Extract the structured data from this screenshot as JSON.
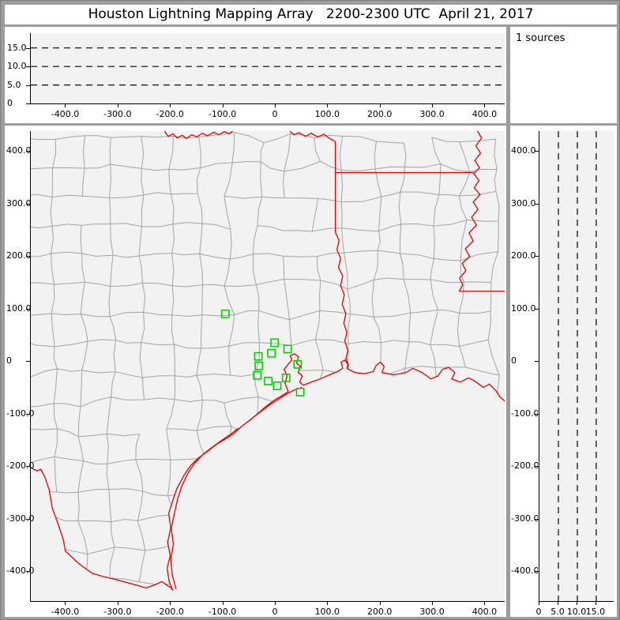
{
  "window": {
    "title": "Houston Lightning Mapping Array   2200-2300 UTC  April 21, 2017"
  },
  "sources_panel": {
    "label": "1 sources"
  },
  "colors": {
    "window_frame": "#9c9c9c",
    "panel_background": "#ffffff",
    "plot_background": "#f2f2f2",
    "axis": "#000000",
    "county_line": "#a3a3a3",
    "state_border": "#e60000",
    "station_marker": "#00d400",
    "dashed_gridline": "#000000"
  },
  "chart_data": [
    {
      "id": "altitude-vs-eastwest",
      "type": "scatter",
      "title": "",
      "xlabel": "",
      "ylabel": "",
      "xlim": [
        -467,
        437
      ],
      "ylim": [
        0,
        19
      ],
      "x_ticks": {
        "values": [
          -400,
          -300,
          -200,
          -100,
          0,
          100,
          200,
          300,
          400
        ],
        "labels": [
          "-400.0",
          "-300.0",
          "-200.0",
          "-100.0",
          "0",
          "100.0",
          "200.0",
          "300.0",
          "400.0"
        ]
      },
      "y_ticks": {
        "values": [
          0,
          5,
          10,
          15
        ],
        "labels": [
          "0",
          "5.0",
          "10.0",
          "15.0"
        ]
      },
      "dashed_hlines_km": [
        5,
        10,
        15
      ],
      "grid": "dashed horizontal lines",
      "legend": "none",
      "points": []
    },
    {
      "id": "map-plan-view",
      "type": "scatter",
      "title": "",
      "xlabel": "",
      "ylabel": "",
      "xlim": [
        -467,
        437
      ],
      "ylim": [
        -457,
        438
      ],
      "x_ticks": {
        "values": [
          -400,
          -300,
          -200,
          -100,
          0,
          100,
          200,
          300,
          400
        ],
        "labels": [
          "-400.0",
          "-300.0",
          "-200.0",
          "-100.0",
          "0",
          "100.0",
          "200.0",
          "300.0",
          "400.0"
        ]
      },
      "y_ticks": {
        "values": [
          400,
          300,
          200,
          100,
          0,
          -100,
          -200,
          -300,
          -400
        ],
        "labels": [
          "400.0",
          "300.0",
          "200.0",
          "100.0",
          "0",
          "-100.0",
          "-200.0",
          "-300.0",
          "-400.0"
        ]
      },
      "marker": "open green square",
      "stations_km": [
        [
          -96,
          90
        ],
        [
          -2,
          35
        ],
        [
          -8,
          15
        ],
        [
          23,
          23
        ],
        [
          -33,
          9
        ],
        [
          -32,
          -9
        ],
        [
          42,
          -6
        ],
        [
          -35,
          -27
        ],
        [
          -14,
          -38
        ],
        [
          20,
          -32
        ],
        [
          3,
          -47
        ],
        [
          47,
          -59
        ]
      ],
      "points": []
    },
    {
      "id": "altitude-vs-northsouth",
      "type": "scatter",
      "title": "",
      "xlabel": "",
      "ylabel": "",
      "xlim": [
        0,
        19.6
      ],
      "ylim": [
        -457,
        438
      ],
      "x_ticks": {
        "values": [
          0,
          5,
          10,
          15
        ],
        "labels": [
          "0",
          "5.0",
          "10.0",
          "15.0"
        ]
      },
      "y_ticks": {
        "values": [
          400,
          300,
          200,
          100,
          0,
          -100,
          -200,
          -300,
          -400
        ],
        "labels": [
          "400.0",
          "300.0",
          "200.0",
          "100.0",
          "0",
          "-100.0",
          "-200.0",
          "-300.0",
          "-400.0"
        ]
      },
      "dashed_vlines_km": [
        5,
        10,
        15
      ],
      "grid": "dashed vertical lines",
      "legend": "none",
      "points": []
    }
  ],
  "map_geometry": {
    "coastline": [
      [
        -196,
        -437
      ],
      [
        -203,
        -420
      ],
      [
        -207,
        -395
      ],
      [
        -201,
        -370
      ],
      [
        -206,
        -345
      ],
      [
        -200,
        -318
      ],
      [
        -204,
        -290
      ],
      [
        -196,
        -265
      ],
      [
        -188,
        -242
      ],
      [
        -175,
        -218
      ],
      [
        -163,
        -200
      ],
      [
        -148,
        -185
      ],
      [
        -130,
        -172
      ],
      [
        -112,
        -158
      ],
      [
        -95,
        -148
      ],
      [
        -80,
        -138
      ],
      [
        -62,
        -122
      ],
      [
        -48,
        -112
      ],
      [
        -32,
        -98
      ],
      [
        -18,
        -86
      ],
      [
        -2,
        -74
      ],
      [
        12,
        -66
      ],
      [
        24,
        -58
      ],
      [
        18,
        -42
      ],
      [
        22,
        -28
      ],
      [
        16,
        -16
      ],
      [
        24,
        -6
      ],
      [
        31,
        2
      ],
      [
        28,
        10
      ],
      [
        36,
        14
      ],
      [
        44,
        8
      ],
      [
        40,
        -4
      ],
      [
        47,
        -10
      ],
      [
        43,
        -22
      ],
      [
        51,
        -28
      ],
      [
        46,
        -40
      ],
      [
        53,
        -46
      ],
      [
        68,
        -40
      ],
      [
        85,
        -34
      ],
      [
        103,
        -26
      ],
      [
        118,
        -20
      ],
      [
        128,
        -14
      ],
      [
        125,
        -2
      ],
      [
        132,
        2
      ],
      [
        138,
        -6
      ],
      [
        136,
        -14
      ],
      [
        152,
        -22
      ],
      [
        170,
        -24
      ],
      [
        186,
        -20
      ],
      [
        192,
        -8
      ],
      [
        200,
        -2
      ],
      [
        207,
        -10
      ],
      [
        203,
        -22
      ],
      [
        225,
        -26
      ],
      [
        248,
        -22
      ],
      [
        262,
        -14
      ],
      [
        280,
        -22
      ],
      [
        296,
        -34
      ],
      [
        310,
        -28
      ],
      [
        318,
        -16
      ],
      [
        330,
        -12
      ],
      [
        342,
        -22
      ],
      [
        336,
        -34
      ],
      [
        352,
        -40
      ],
      [
        368,
        -32
      ],
      [
        380,
        -38
      ],
      [
        396,
        -50
      ],
      [
        408,
        -44
      ],
      [
        420,
        -56
      ],
      [
        428,
        -68
      ],
      [
        437,
        -76
      ]
    ],
    "rio_grande": [
      [
        -467,
        -203
      ],
      [
        -455,
        -209
      ],
      [
        -448,
        -206
      ],
      [
        -440,
        -221
      ],
      [
        -432,
        -245
      ],
      [
        -426,
        -280
      ],
      [
        -415,
        -310
      ],
      [
        -405,
        -340
      ],
      [
        -401,
        -362
      ],
      [
        -390,
        -372
      ],
      [
        -383,
        -379
      ],
      [
        -367,
        -392
      ],
      [
        -350,
        -404
      ],
      [
        -330,
        -410
      ],
      [
        -301,
        -417
      ],
      [
        -275,
        -424
      ],
      [
        -247,
        -432
      ],
      [
        -230,
        -426
      ],
      [
        -217,
        -420
      ],
      [
        -207,
        -427
      ],
      [
        -199,
        -432
      ],
      [
        -196,
        -437
      ]
    ],
    "other_borders": [
      [
        [
          -212,
          438
        ],
        [
          -205,
          428
        ],
        [
          -196,
          433
        ],
        [
          -188,
          425
        ],
        [
          -178,
          430
        ],
        [
          -170,
          424
        ],
        [
          -160,
          431
        ],
        [
          -150,
          427
        ],
        [
          -140,
          434
        ],
        [
          -130,
          429
        ],
        [
          -118,
          436
        ],
        [
          -108,
          431
        ],
        [
          -98,
          437
        ],
        [
          -88,
          433
        ],
        [
          -80,
          440
        ]
      ],
      [
        [
          25,
          440
        ],
        [
          35,
          431
        ],
        [
          45,
          435
        ],
        [
          57,
          428
        ],
        [
          68,
          434
        ],
        [
          80,
          427
        ],
        [
          92,
          432
        ],
        [
          103,
          424
        ],
        [
          114,
          418
        ]
      ],
      [
        [
          114,
          418
        ],
        [
          114,
          245
        ]
      ],
      [
        [
          114,
          245
        ],
        [
          121,
          230
        ],
        [
          117,
          212
        ],
        [
          124,
          196
        ],
        [
          120,
          178
        ],
        [
          128,
          162
        ],
        [
          124,
          144
        ],
        [
          131,
          126
        ],
        [
          127,
          108
        ],
        [
          134,
          90
        ],
        [
          130,
          72
        ],
        [
          136,
          55
        ],
        [
          132,
          38
        ],
        [
          138,
          20
        ],
        [
          134,
          5
        ],
        [
          139,
          -8
        ],
        [
          136,
          -14
        ]
      ],
      [
        [
          114,
          359
        ],
        [
          378,
          359
        ]
      ],
      [
        [
          385,
          438
        ],
        [
          393,
          425
        ],
        [
          382,
          410
        ],
        [
          391,
          396
        ],
        [
          380,
          382
        ],
        [
          389,
          368
        ],
        [
          378,
          357
        ],
        [
          388,
          344
        ],
        [
          379,
          330
        ],
        [
          390,
          317
        ],
        [
          377,
          303
        ],
        [
          386,
          289
        ],
        [
          374,
          274
        ],
        [
          383,
          259
        ],
        [
          369,
          244
        ],
        [
          377,
          229
        ],
        [
          362,
          214
        ],
        [
          370,
          199
        ],
        [
          356,
          186
        ],
        [
          363,
          172
        ],
        [
          351,
          158
        ],
        [
          357,
          145
        ],
        [
          350,
          133
        ]
      ],
      [
        [
          350,
          133
        ],
        [
          437,
          133
        ]
      ]
    ],
    "barrier_islands": [
      [
        [
          -190,
          -434
        ],
        [
          -197,
          -408
        ],
        [
          -200,
          -378
        ],
        [
          -195,
          -348
        ],
        [
          -199,
          -318
        ],
        [
          -193,
          -290
        ],
        [
          -187,
          -263
        ],
        [
          -179,
          -238
        ],
        [
          -167,
          -213
        ],
        [
          -154,
          -194
        ],
        [
          -139,
          -178
        ],
        [
          -121,
          -164
        ],
        [
          -103,
          -151
        ],
        [
          -87,
          -140
        ],
        [
          -71,
          -128
        ]
      ],
      [
        [
          -55,
          -117
        ],
        [
          -40,
          -105
        ],
        [
          -24,
          -93
        ],
        [
          -8,
          -81
        ],
        [
          8,
          -71
        ],
        [
          22,
          -62
        ],
        [
          36,
          -55
        ],
        [
          50,
          -50
        ]
      ]
    ]
  }
}
